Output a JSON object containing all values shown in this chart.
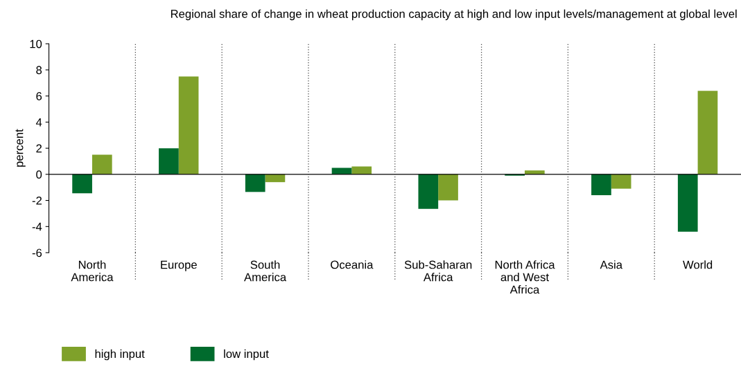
{
  "chart_data": {
    "type": "bar",
    "title": "Regional share of change in wheat production capacity at high and low input levels/management at global level",
    "ylabel": "percent",
    "categories": [
      "North\nAmerica",
      "Europe",
      "South\nAmerica",
      "Oceania",
      "Sub-Saharan\nAfrica",
      "North Africa\nand West\nAfrica",
      "Asia",
      "World"
    ],
    "series": [
      {
        "name": "high input",
        "color": "#7fa12a",
        "values": [
          1.5,
          7.5,
          -0.6,
          0.6,
          -2.0,
          0.3,
          -1.1,
          6.4
        ]
      },
      {
        "name": "low input",
        "color": "#006b2d",
        "values": [
          -1.45,
          2.0,
          -1.35,
          0.5,
          -2.65,
          -0.1,
          -1.6,
          -4.4
        ]
      }
    ],
    "ylim": [
      -6,
      10
    ],
    "yticks": [
      -6,
      -4,
      -2,
      0,
      2,
      4,
      6,
      8,
      10
    ],
    "grid": "x",
    "legend": "bottom left"
  }
}
